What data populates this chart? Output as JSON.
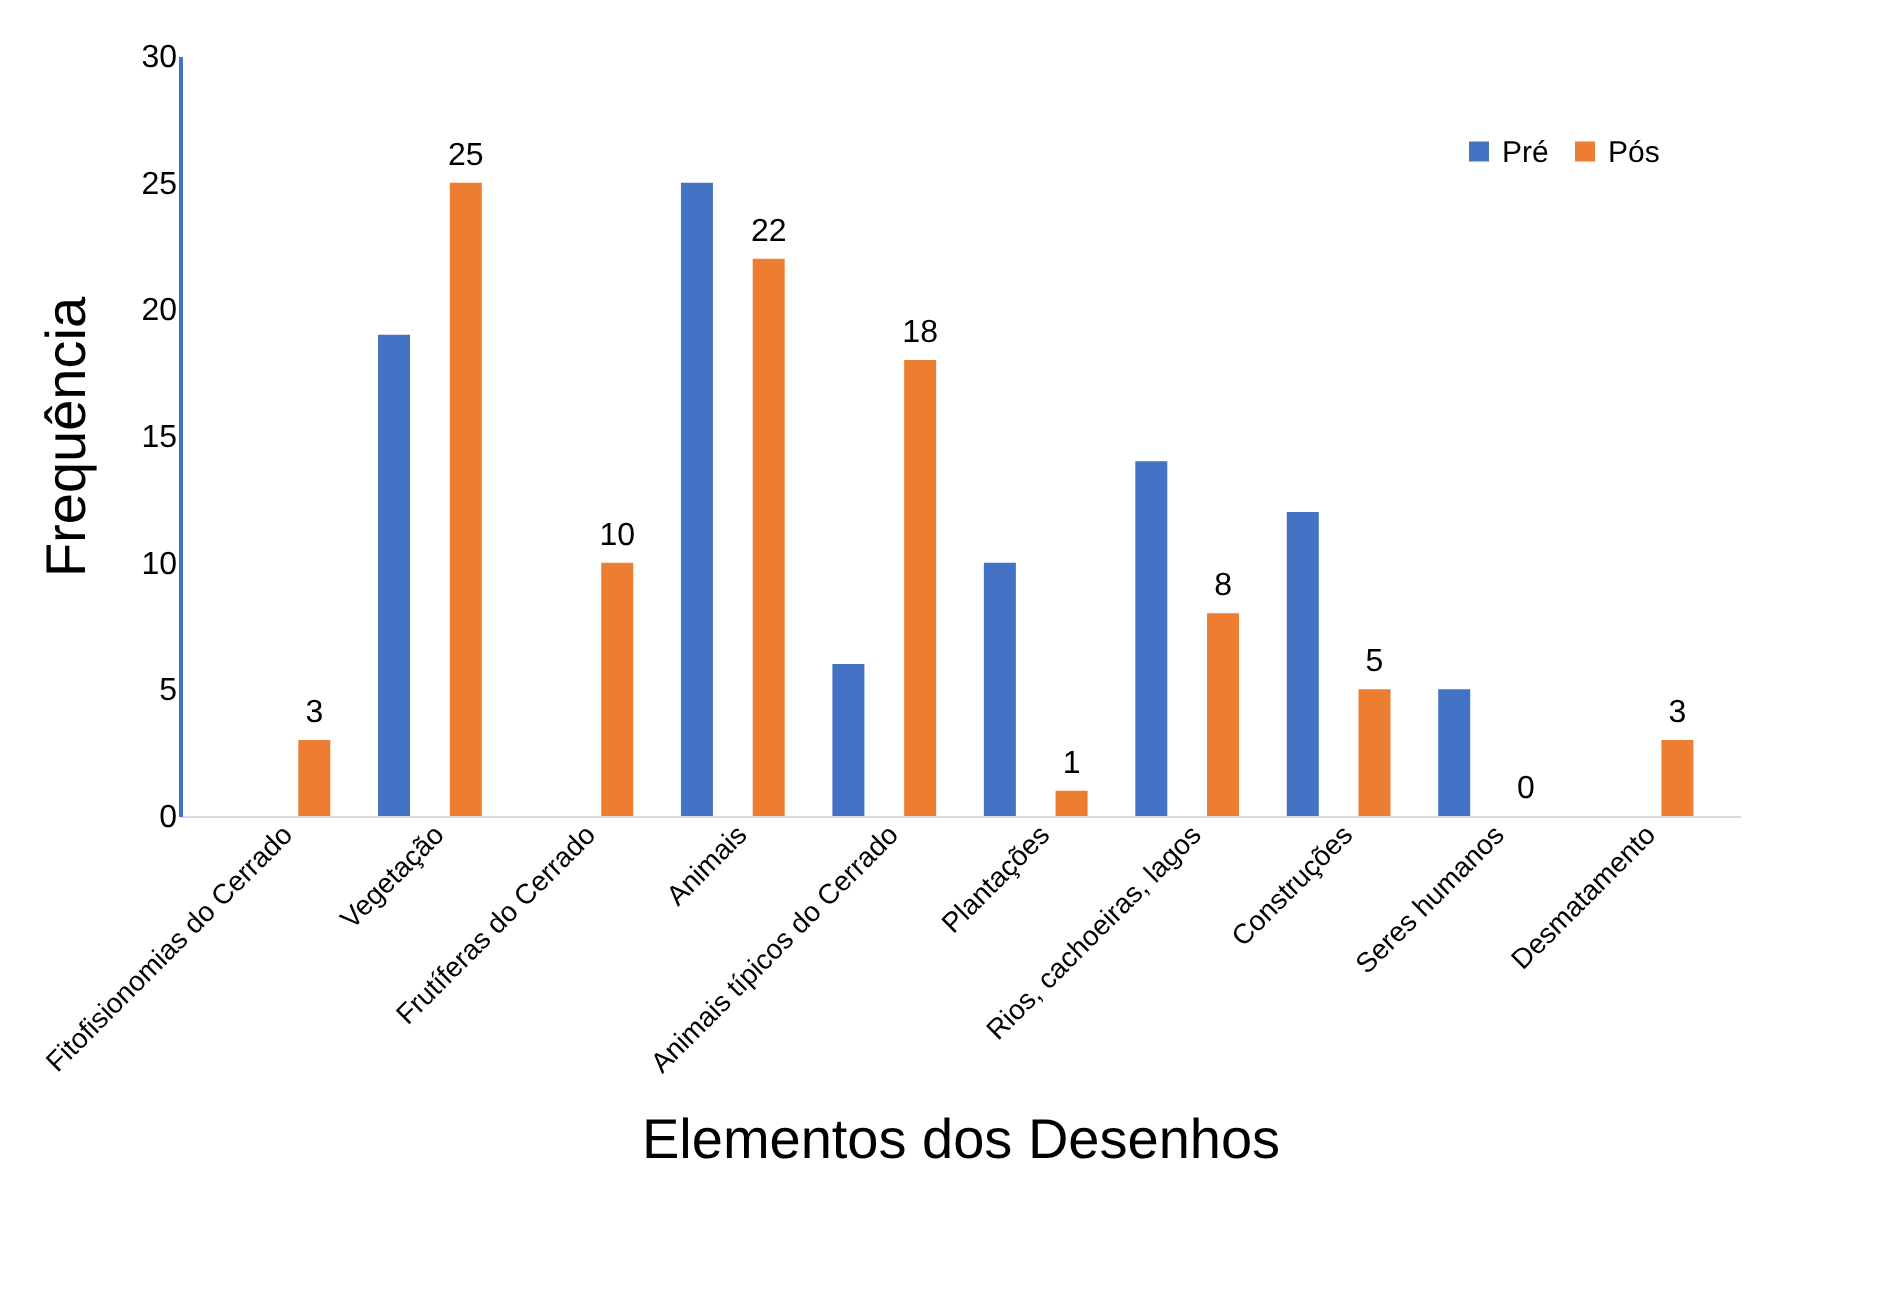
{
  "chart_data": {
    "type": "bar",
    "xlabel": "Elementos dos Desenhos",
    "ylabel": "Frequência",
    "categories": [
      "Fitofisionomias do Cerrado",
      "Vegetação",
      "Frutíferas do Cerrado",
      "Animais",
      "Animais típicos do Cerrado",
      "Plantações",
      "Rios, cachoeiras, lagos",
      "Construções",
      "Seres humanos",
      "Desmatamento"
    ],
    "series": [
      {
        "name": "Pré",
        "color": "#4472c4",
        "values": [
          0,
          19,
          0,
          25,
          6,
          10,
          14,
          12,
          5,
          0
        ]
      },
      {
        "name": "Pós",
        "color": "#ed7d31",
        "values": [
          3,
          25,
          10,
          22,
          18,
          1,
          8,
          5,
          0,
          3
        ],
        "value_labels": [
          "3",
          "25",
          "10",
          "22",
          "18",
          "1",
          "8",
          "5",
          "0",
          "3"
        ]
      }
    ],
    "ylim": [
      0,
      30
    ],
    "yticks": [
      0,
      5,
      10,
      15,
      20,
      25,
      30
    ],
    "grid": false,
    "legend": "top right"
  }
}
